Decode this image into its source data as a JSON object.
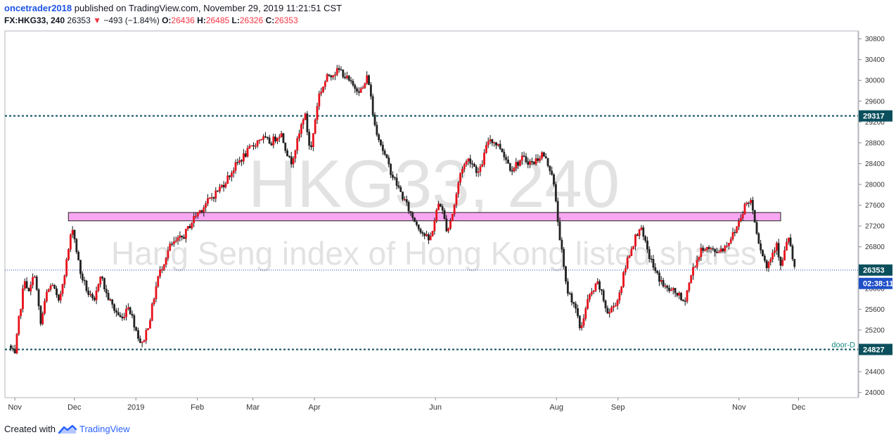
{
  "header": {
    "author": "oncetrader2018",
    "published_text": "published on TradingView.com, November 29, 2019 11:21:51 CST",
    "symbol": "FX:HKG33, 240",
    "last_price": "26353",
    "change_arrow": "▼",
    "change_text": "−493 (−1.84%)",
    "open_label": "O:",
    "open_value": "26436",
    "high_label": "H:",
    "high_value": "26485",
    "low_label": "L:",
    "low_value": "26326",
    "close_label": "C:",
    "close_value": "26353"
  },
  "footer": {
    "created_with": "Created with",
    "brand": "TradingView"
  },
  "watermark": {
    "symbol": "HKG33, 240",
    "description": "Hang Seng index of Hong Kong listed shares"
  },
  "colors": {
    "up": "#e8101b",
    "down": "#222222",
    "zone_fill": "#f9a7f2",
    "level_line": "#0b4f5c",
    "last_price_badge": "#0b4f5c",
    "countdown_badge": "#1f50c9"
  },
  "chart_data": {
    "type": "candlestick",
    "y_range": [
      23900,
      30950
    ],
    "y_ticks": [
      24000,
      24400,
      24800,
      25200,
      25600,
      26000,
      26400,
      26800,
      27200,
      27600,
      28000,
      28400,
      28800,
      29200,
      29600,
      30000,
      30400,
      30800
    ],
    "months": [
      {
        "label": "Nov",
        "date": "2018-11-01"
      },
      {
        "label": "Dec",
        "date": "2018-12-01"
      },
      {
        "label": "2019",
        "date": "2019-01-01"
      },
      {
        "label": "Feb",
        "date": "2019-02-01"
      },
      {
        "label": "Mar",
        "date": "2019-03-01"
      },
      {
        "label": "Apr",
        "date": "2019-04-01"
      },
      {
        "label": "Jun",
        "date": "2019-06-01"
      },
      {
        "label": "Aug",
        "date": "2019-08-01"
      },
      {
        "label": "Sep",
        "date": "2019-09-01"
      },
      {
        "label": "Nov",
        "date": "2019-11-01"
      },
      {
        "label": "Dec",
        "date": "2019-12-01"
      }
    ],
    "x_range": [
      "2018-10-27",
      "2019-12-31"
    ],
    "levels": [
      {
        "value": 29317,
        "label": "29317",
        "style": "dashed"
      },
      {
        "value": 24827,
        "label": "24827",
        "style": "dashed",
        "tag": "door-D"
      }
    ],
    "last_price": {
      "value": 26353,
      "label": "26353",
      "countdown": "02:38:11"
    },
    "zone": {
      "from_date": "2018-11-28",
      "to_date": "2019-11-22",
      "low": 27300,
      "high": 27460
    },
    "price_path": [
      [
        "2018-10-29",
        24900
      ],
      [
        "2018-11-01",
        24700
      ],
      [
        "2018-11-03",
        25400
      ],
      [
        "2018-11-06",
        26200
      ],
      [
        "2018-11-08",
        25900
      ],
      [
        "2018-11-11",
        26300
      ],
      [
        "2018-11-14",
        25300
      ],
      [
        "2018-11-17",
        25900
      ],
      [
        "2018-11-20",
        26100
      ],
      [
        "2018-11-23",
        25700
      ],
      [
        "2018-11-27",
        26500
      ],
      [
        "2018-11-30",
        27200
      ],
      [
        "2018-12-04",
        26300
      ],
      [
        "2018-12-08",
        25900
      ],
      [
        "2018-12-11",
        25700
      ],
      [
        "2018-12-14",
        26300
      ],
      [
        "2018-12-17",
        25900
      ],
      [
        "2018-12-21",
        25600
      ],
      [
        "2018-12-25",
        25400
      ],
      [
        "2018-12-28",
        25700
      ],
      [
        "2019-01-02",
        25100
      ],
      [
        "2019-01-04",
        24900
      ],
      [
        "2019-01-08",
        25400
      ],
      [
        "2019-01-12",
        26200
      ],
      [
        "2019-01-18",
        26800
      ],
      [
        "2019-01-25",
        27000
      ],
      [
        "2019-01-31",
        27400
      ],
      [
        "2019-02-07",
        27700
      ],
      [
        "2019-02-14",
        28000
      ],
      [
        "2019-02-21",
        28400
      ],
      [
        "2019-02-28",
        28700
      ],
      [
        "2019-03-05",
        28900
      ],
      [
        "2019-03-10",
        28800
      ],
      [
        "2019-03-15",
        29000
      ],
      [
        "2019-03-20",
        28400
      ],
      [
        "2019-03-24",
        28900
      ],
      [
        "2019-03-27",
        29400
      ],
      [
        "2019-03-30",
        28600
      ],
      [
        "2019-04-03",
        29700
      ],
      [
        "2019-04-08",
        30100
      ],
      [
        "2019-04-14",
        30200
      ],
      [
        "2019-04-20",
        29900
      ],
      [
        "2019-04-25",
        29800
      ],
      [
        "2019-04-28",
        30100
      ],
      [
        "2019-05-01",
        29200
      ],
      [
        "2019-05-06",
        28600
      ],
      [
        "2019-05-10",
        28200
      ],
      [
        "2019-05-15",
        27800
      ],
      [
        "2019-05-20",
        27400
      ],
      [
        "2019-05-25",
        27100
      ],
      [
        "2019-05-29",
        26900
      ],
      [
        "2019-06-03",
        27700
      ],
      [
        "2019-06-07",
        27100
      ],
      [
        "2019-06-10",
        27500
      ],
      [
        "2019-06-14",
        28300
      ],
      [
        "2019-06-18",
        28500
      ],
      [
        "2019-06-23",
        28200
      ],
      [
        "2019-06-28",
        28900
      ],
      [
        "2019-07-04",
        28700
      ],
      [
        "2019-07-09",
        28300
      ],
      [
        "2019-07-15",
        28500
      ],
      [
        "2019-07-20",
        28400
      ],
      [
        "2019-07-25",
        28600
      ],
      [
        "2019-07-30",
        28200
      ],
      [
        "2019-08-02",
        27200
      ],
      [
        "2019-08-06",
        26000
      ],
      [
        "2019-08-10",
        25700
      ],
      [
        "2019-08-13",
        25200
      ],
      [
        "2019-08-17",
        25800
      ],
      [
        "2019-08-22",
        26100
      ],
      [
        "2019-08-27",
        25500
      ],
      [
        "2019-09-01",
        25800
      ],
      [
        "2019-09-06",
        26600
      ],
      [
        "2019-09-12",
        27200
      ],
      [
        "2019-09-16",
        26700
      ],
      [
        "2019-09-20",
        26300
      ],
      [
        "2019-09-25",
        26000
      ],
      [
        "2019-10-01",
        25900
      ],
      [
        "2019-10-04",
        25700
      ],
      [
        "2019-10-09",
        26400
      ],
      [
        "2019-10-14",
        26800
      ],
      [
        "2019-10-20",
        26700
      ],
      [
        "2019-10-25",
        26800
      ],
      [
        "2019-10-30",
        27100
      ],
      [
        "2019-11-04",
        27600
      ],
      [
        "2019-11-07",
        27700
      ],
      [
        "2019-11-11",
        26900
      ],
      [
        "2019-11-15",
        26400
      ],
      [
        "2019-11-18",
        26700
      ],
      [
        "2019-11-20",
        26900
      ],
      [
        "2019-11-22",
        26400
      ],
      [
        "2019-11-26",
        27000
      ],
      [
        "2019-11-29",
        26353
      ]
    ]
  }
}
